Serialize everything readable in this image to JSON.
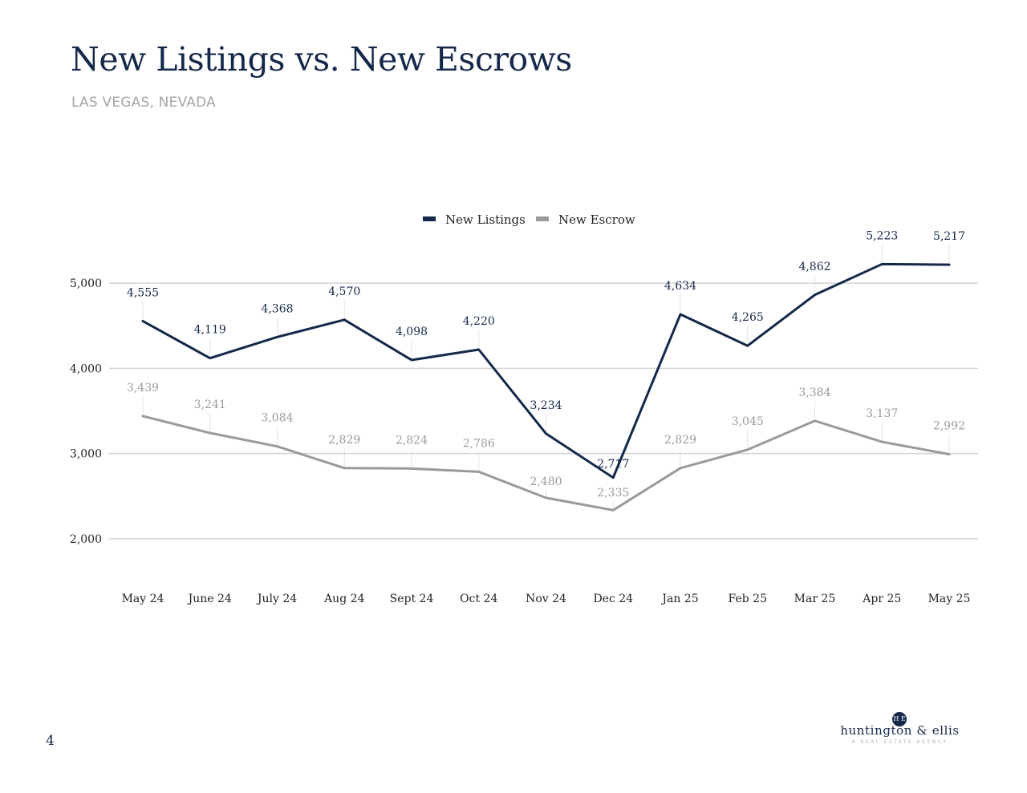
{
  "header": {
    "title": "New Listings vs. New Escrows",
    "subtitle": "LAS VEGAS, NEVADA"
  },
  "chart_data": {
    "type": "line",
    "title": "",
    "xlabel": "",
    "ylabel": "",
    "categories": [
      "May 24",
      "June 24",
      "July 24",
      "Aug 24",
      "Sept 24",
      "Oct 24",
      "Nov 24",
      "Dec 24",
      "Jan 25",
      "Feb 25",
      "Mar 25",
      "Apr 25",
      "May 25"
    ],
    "series": [
      {
        "name": "New Listings",
        "color": "#14284a",
        "values": [
          4555,
          4119,
          4368,
          4570,
          4098,
          4220,
          3234,
          2717,
          4634,
          4265,
          4862,
          5223,
          5217
        ],
        "labels": [
          "4,555",
          "4,119",
          "4,368",
          "4,570",
          "4,098",
          "4,220",
          "3,234",
          "2,717",
          "4,634",
          "4,265",
          "4,862",
          "5,223",
          "5,217"
        ]
      },
      {
        "name": "New Escrow",
        "color": "#9a9a9c",
        "values": [
          3439,
          3241,
          3084,
          2829,
          2824,
          2786,
          2480,
          2335,
          2829,
          3045,
          3384,
          3137,
          2992
        ],
        "labels": [
          "3,439",
          "3,241",
          "3,084",
          "2,829",
          "2,824",
          "2,786",
          "2,480",
          "2,335",
          "2,829",
          "3,045",
          "3,384",
          "3,137",
          "2,992"
        ]
      }
    ],
    "ylim": [
      1500,
      5500
    ],
    "yticks": [
      2000,
      3000,
      4000,
      5000
    ],
    "ytick_labels": [
      "2,000",
      "3,000",
      "4,000",
      "5,000"
    ],
    "grid": true,
    "legend_position": "top-center"
  },
  "footer": {
    "page_number": "4",
    "logo_mark": "H E",
    "logo_name": "huntington & ellis",
    "logo_tagline": "A REAL ESTATE AGENCY"
  }
}
